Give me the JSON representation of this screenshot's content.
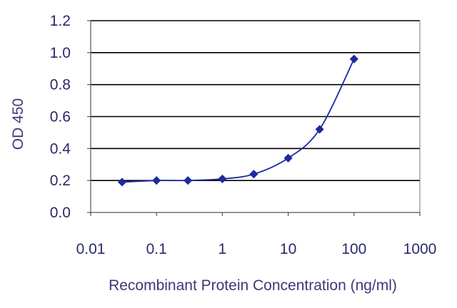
{
  "chart_data": {
    "type": "scatter",
    "title": "",
    "xlabel": "Recombinant Protein Concentration (ng/ml)",
    "ylabel": "OD 450",
    "x_scale": "log",
    "xlim": [
      0.01,
      1000
    ],
    "ylim": [
      0.0,
      1.2
    ],
    "x_ticks": [
      "0.01",
      "0.1",
      "1",
      "10",
      "100",
      "1000"
    ],
    "y_ticks": [
      "0.0",
      "0.2",
      "0.4",
      "0.6",
      "0.8",
      "1.0",
      "1.2"
    ],
    "grid": "horizontal",
    "series": [
      {
        "x": [
          0.03,
          0.1,
          0.3,
          1,
          3,
          10,
          30,
          100
        ],
        "y": [
          0.19,
          0.2,
          0.2,
          0.21,
          0.24,
          0.34,
          0.52,
          0.96
        ],
        "fit_curve": true
      }
    ]
  },
  "colors": {
    "series": "#1e2a9c",
    "grid": "#000000",
    "text": "#3a3a7a",
    "tick_text": "#2a2a6a"
  }
}
